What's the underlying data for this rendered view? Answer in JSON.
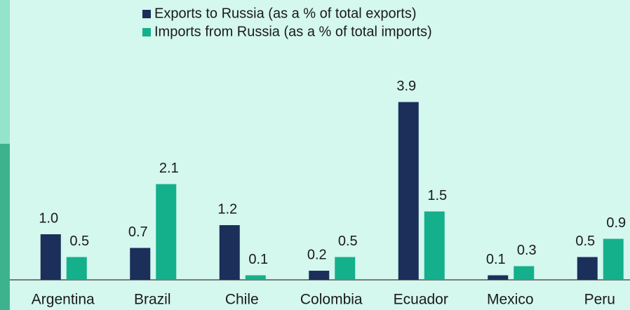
{
  "chart_data": {
    "type": "bar",
    "categories": [
      "Argentina",
      "Brazil",
      "Chile",
      "Colombia",
      "Ecuador",
      "Mexico",
      "Peru"
    ],
    "series": [
      {
        "name": "Exports to Russia (as a % of total exports)",
        "color": "#1b2f5a",
        "values": [
          1.0,
          0.7,
          1.2,
          0.2,
          3.9,
          0.1,
          0.5
        ],
        "value_labels": [
          "1.0",
          "0.7",
          "1.2",
          "0.2",
          "3.9",
          "0.1",
          "0.5"
        ]
      },
      {
        "name": "Imports from Russia (as a % of total imports)",
        "color": "#14b08b",
        "values": [
          0.5,
          2.1,
          0.1,
          0.5,
          1.5,
          0.3,
          0.9
        ],
        "value_labels": [
          "0.5",
          "2.1",
          "0.1",
          "0.5",
          "1.5",
          "0.3",
          "0.9"
        ]
      }
    ],
    "ylim": [
      0,
      4
    ]
  }
}
